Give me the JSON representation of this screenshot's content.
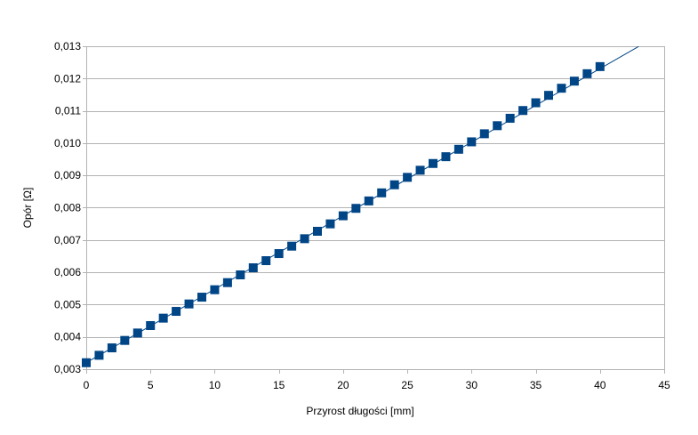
{
  "chart_data": {
    "type": "scatter",
    "xlabel": "Przyrost długości [mm]",
    "ylabel": "Opór [Ω]",
    "xlim": [
      0,
      45
    ],
    "ylim": [
      0.003,
      0.013
    ],
    "x_ticks": [
      0,
      5,
      10,
      15,
      20,
      25,
      30,
      35,
      40,
      45
    ],
    "x_tick_labels": [
      "0",
      "5",
      "10",
      "15",
      "20",
      "25",
      "30",
      "35",
      "40",
      "45"
    ],
    "y_ticks": [
      0.003,
      0.004,
      0.005,
      0.006,
      0.007,
      0.008,
      0.009,
      0.01,
      0.011,
      0.012,
      0.013
    ],
    "y_tick_labels": [
      "0,003",
      "0,004",
      "0,005",
      "0,006",
      "0,007",
      "0,008",
      "0,009",
      "0,010",
      "0,011",
      "0,012",
      "0,013"
    ],
    "grid": "horizontal",
    "series": [
      {
        "marker": "square",
        "color": "#004586",
        "x": [
          0,
          1,
          2,
          3,
          4,
          5,
          6,
          7,
          8,
          9,
          10,
          11,
          12,
          13,
          14,
          15,
          16,
          17,
          18,
          19,
          20,
          21,
          22,
          23,
          24,
          25,
          26,
          27,
          28,
          29,
          30,
          31,
          32,
          33,
          34,
          35,
          36,
          37,
          38,
          39,
          40
        ],
        "y": [
          0.0032,
          0.00343,
          0.00366,
          0.00389,
          0.00412,
          0.00435,
          0.00458,
          0.00479,
          0.00502,
          0.00523,
          0.00546,
          0.00568,
          0.00592,
          0.00614,
          0.00636,
          0.00658,
          0.00681,
          0.00704,
          0.00727,
          0.0075,
          0.00775,
          0.00798,
          0.00821,
          0.00846,
          0.00871,
          0.00894,
          0.00916,
          0.00937,
          0.00958,
          0.00981,
          0.01004,
          0.01029,
          0.01054,
          0.01077,
          0.01101,
          0.01125,
          0.01148,
          0.0117,
          0.01192,
          0.01215,
          0.01237
        ]
      },
      {
        "type": "line",
        "color": "#004586",
        "x": [
          0,
          43
        ],
        "y": [
          0.0032,
          0.01299
        ]
      }
    ]
  }
}
